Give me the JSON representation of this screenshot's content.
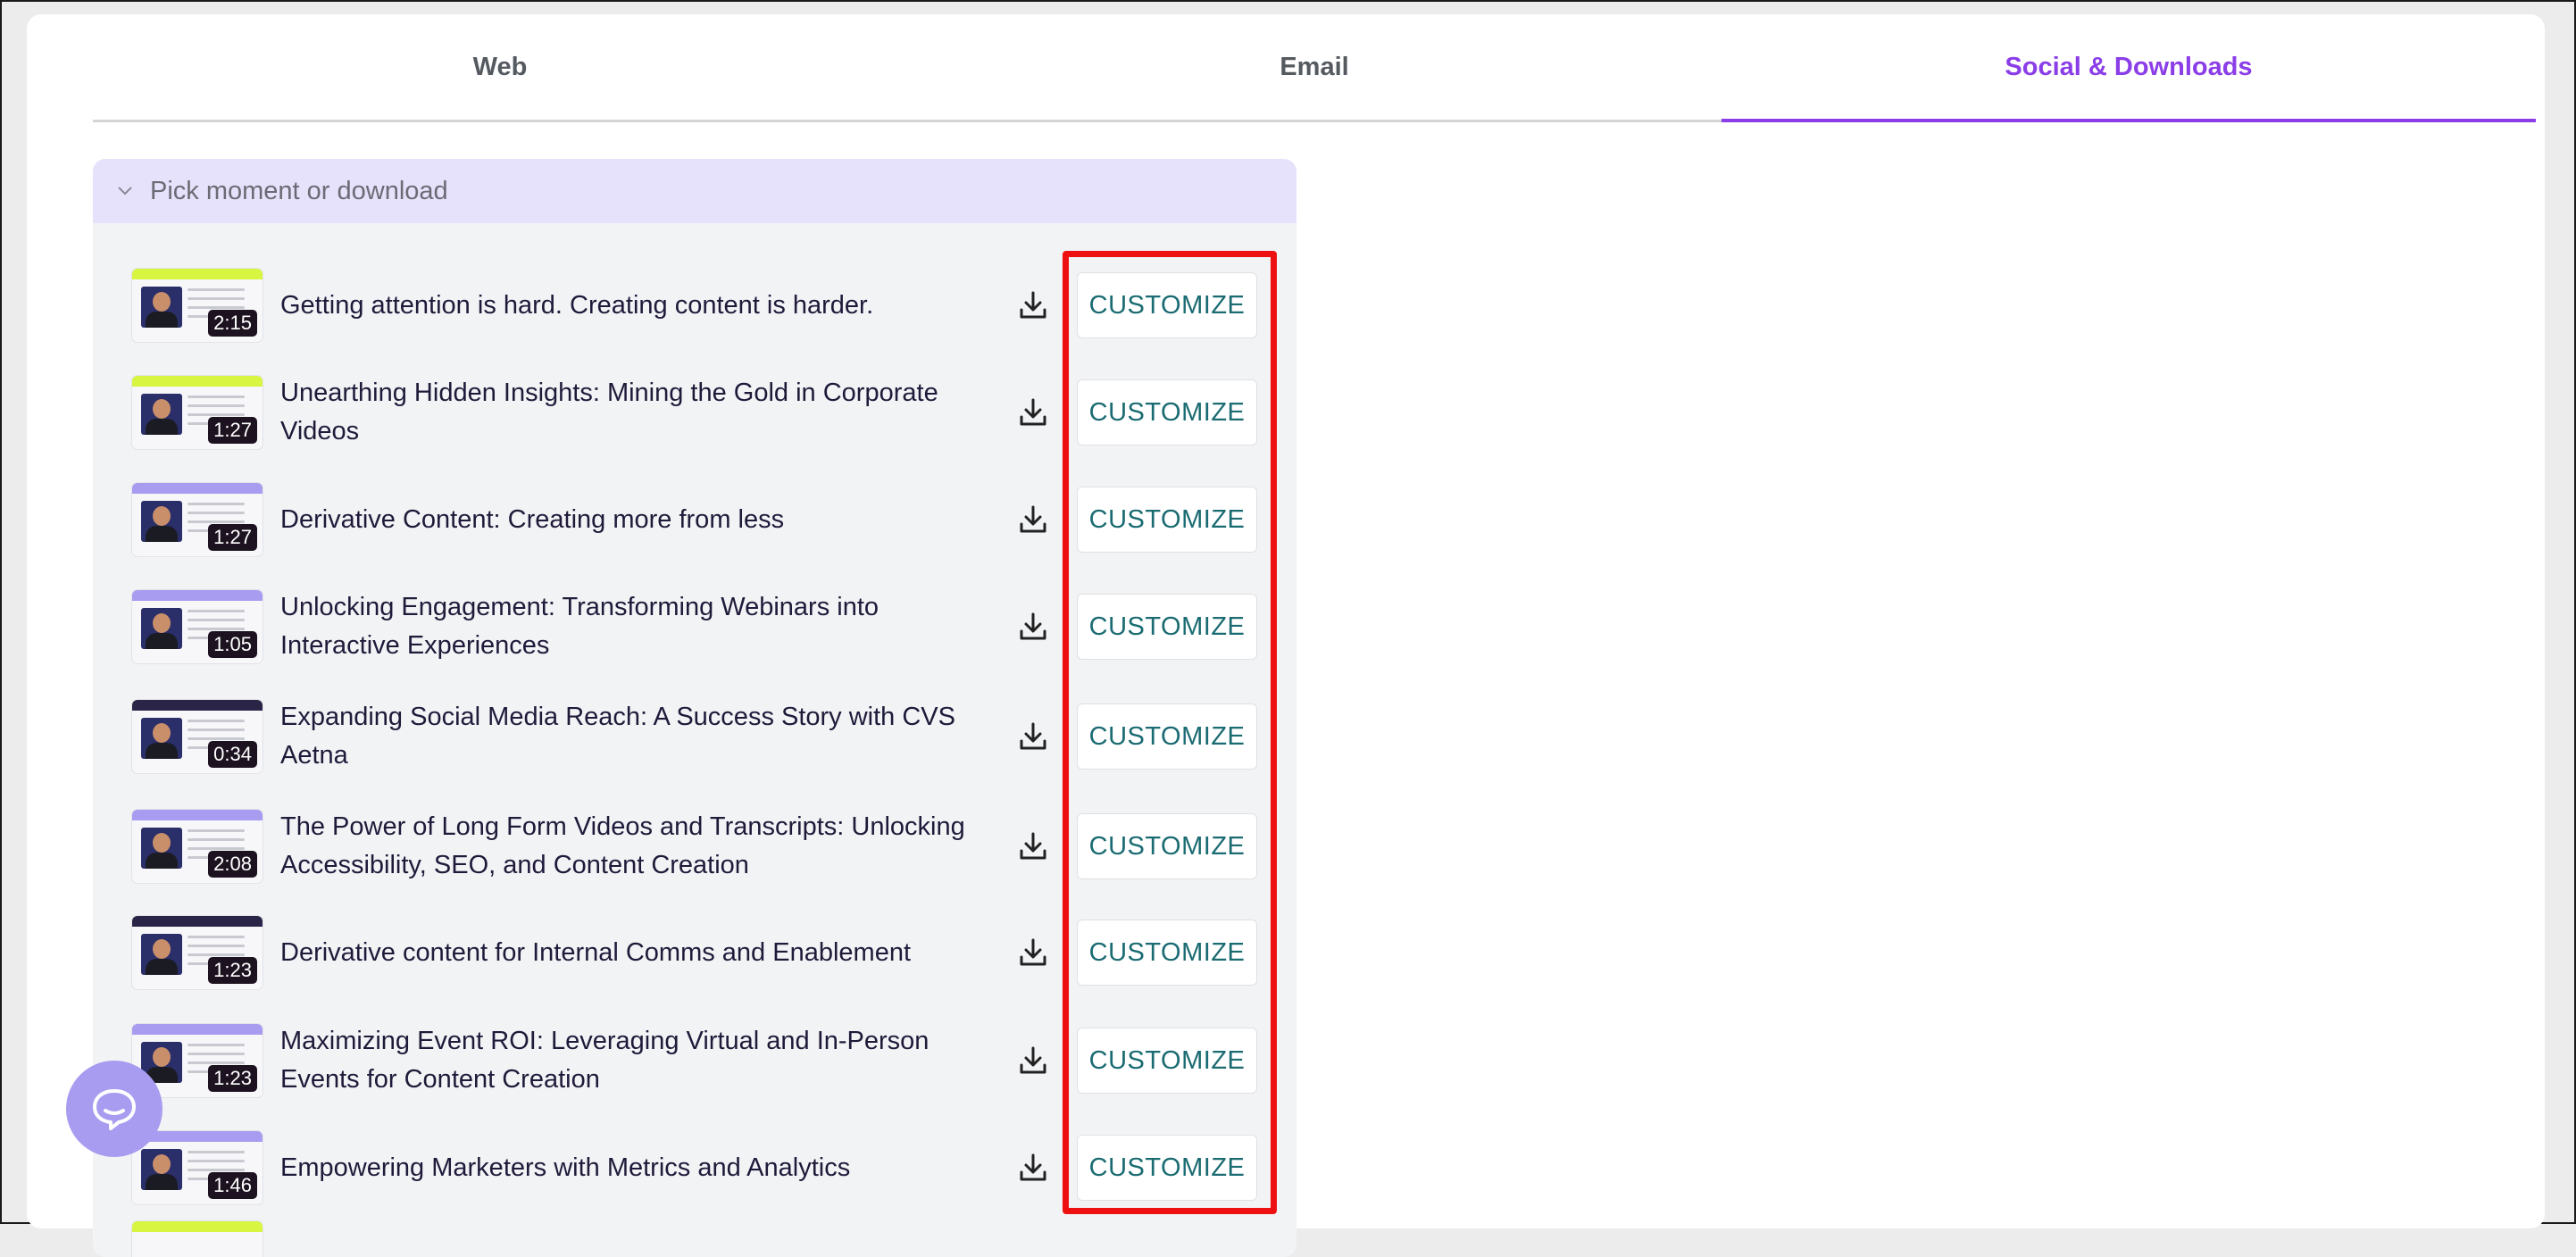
{
  "tabs": [
    {
      "label": "Web",
      "active": false
    },
    {
      "label": "Email",
      "active": false
    },
    {
      "label": "Social & Downloads",
      "active": true
    }
  ],
  "panel": {
    "header": "Pick moment or download",
    "customize_label": "CUSTOMIZE",
    "items": [
      {
        "title": "Getting attention is hard. Creating content is harder.",
        "duration": "2:15",
        "banner_color": "#d8f542"
      },
      {
        "title": "Unearthing Hidden Insights: Mining the Gold in Corporate Videos",
        "duration": "1:27",
        "banner_color": "#d8f542"
      },
      {
        "title": "Derivative Content: Creating more from less",
        "duration": "1:27",
        "banner_color": "#a79cf0"
      },
      {
        "title": "Unlocking Engagement: Transforming Webinars into Interactive Experiences",
        "duration": "1:05",
        "banner_color": "#a79cf0"
      },
      {
        "title": "Expanding Social Media Reach: A Success Story with CVS Aetna",
        "duration": "0:34",
        "banner_color": "#2a2447"
      },
      {
        "title": "The Power of Long Form Videos and Transcripts: Unlocking Accessibility, SEO, and Content Creation",
        "duration": "2:08",
        "banner_color": "#a79cf0"
      },
      {
        "title": "Derivative content for Internal Comms and Enablement",
        "duration": "1:23",
        "banner_color": "#2a2447"
      },
      {
        "title": "Maximizing Event ROI: Leveraging Virtual and In-Person Events for Content Creation",
        "duration": "1:23",
        "banner_color": "#a79cf0"
      },
      {
        "title": "Empowering Marketers with Metrics and Analytics",
        "duration": "1:46",
        "banner_color": "#a79cf0"
      }
    ]
  },
  "colors": {
    "accent": "#8b3ee8",
    "customize_text": "#1a6b72",
    "highlight": "#ee1111",
    "panel_header_bg": "#e6e2fb"
  },
  "icons": {
    "download": "download-icon",
    "chevron": "chevron-down-icon",
    "chat": "chat-bubble-icon"
  }
}
